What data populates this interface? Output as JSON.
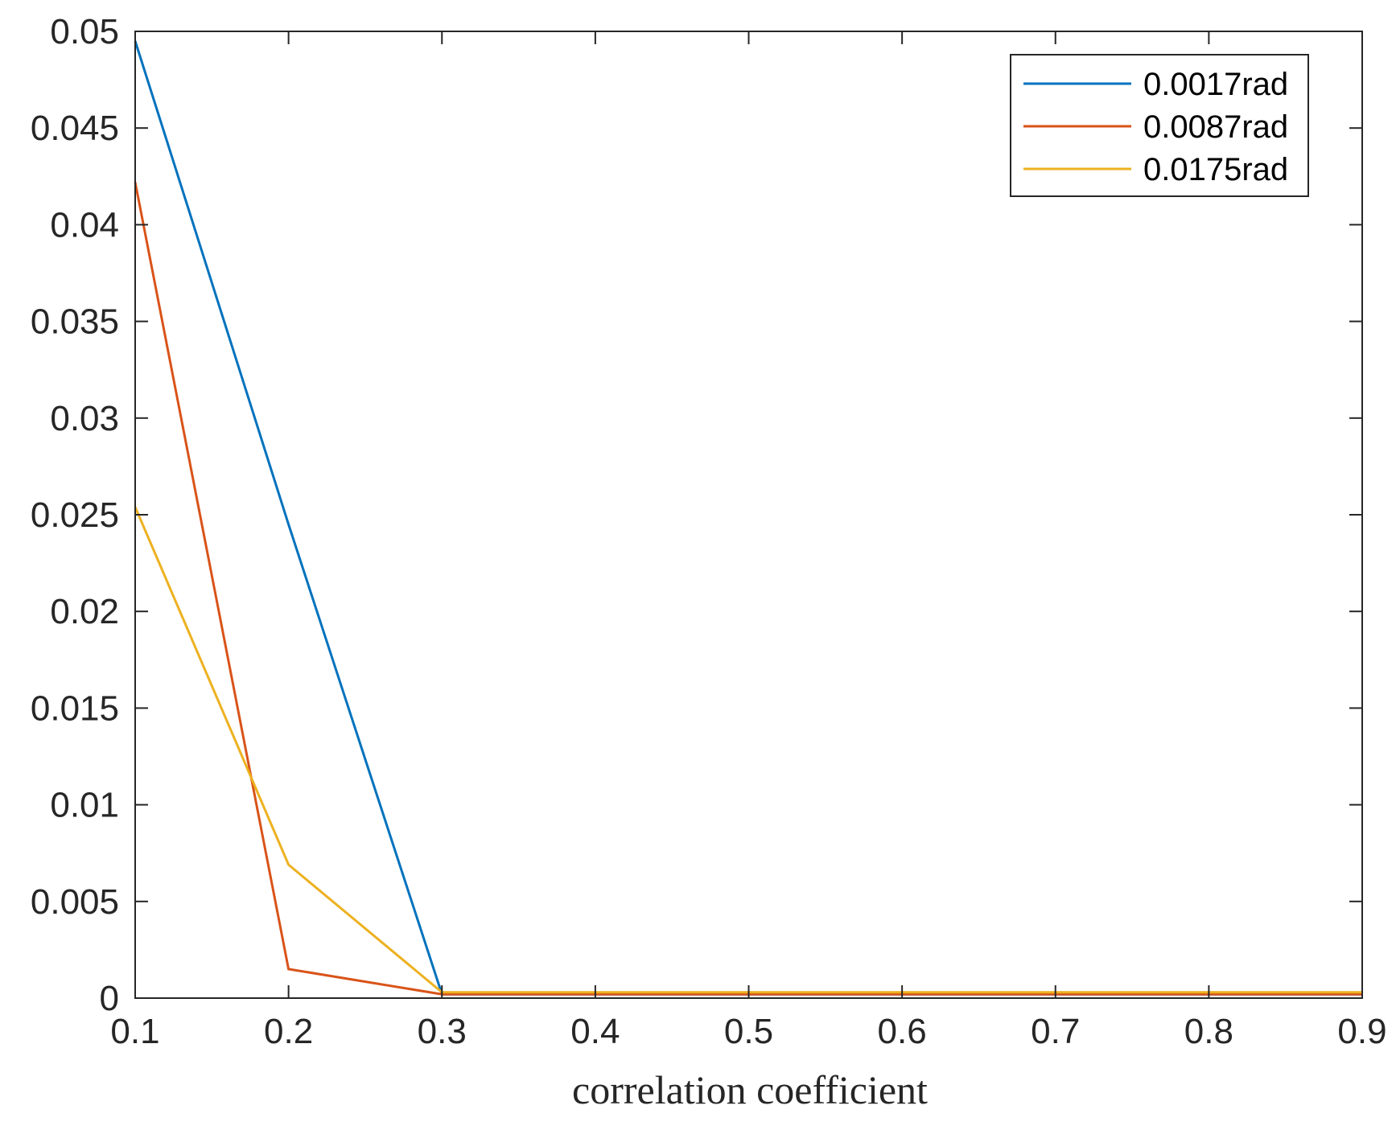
{
  "chart_data": {
    "type": "line",
    "title": "",
    "xlabel": "correlation coefficient",
    "ylabel": "",
    "xlim": [
      0.1,
      0.9
    ],
    "ylim": [
      0,
      0.05
    ],
    "grid": false,
    "legend_position": "top-right",
    "x": [
      0.1,
      0.2,
      0.3,
      0.4,
      0.5,
      0.6,
      0.7,
      0.8,
      0.9
    ],
    "x_tick_labels": [
      "0.1",
      "0.2",
      "0.3",
      "0.4",
      "0.5",
      "0.6",
      "0.7",
      "0.8",
      "0.9"
    ],
    "y_ticks": [
      0,
      0.005,
      0.01,
      0.015,
      0.02,
      0.025,
      0.03,
      0.035,
      0.04,
      0.045,
      0.05
    ],
    "y_tick_labels": [
      "0",
      "0.005",
      "0.01",
      "0.015",
      "0.02",
      "0.025",
      "0.03",
      "0.035",
      "0.04",
      "0.045",
      "0.05"
    ],
    "series": [
      {
        "name": "0.0017rad",
        "color": "#0072BD",
        "values": [
          0.0495,
          0.0245,
          0.0002,
          0.0002,
          0.0002,
          0.0002,
          0.0002,
          0.0002,
          0.0002
        ]
      },
      {
        "name": "0.0087rad",
        "color": "#D95319",
        "values": [
          0.0422,
          0.0015,
          0.0002,
          0.0002,
          0.0002,
          0.0002,
          0.0002,
          0.0002,
          0.0002
        ]
      },
      {
        "name": "0.0175rad",
        "color": "#EDB120",
        "values": [
          0.0254,
          0.0069,
          0.0003,
          0.0003,
          0.0003,
          0.0003,
          0.0003,
          0.0003,
          0.0003
        ]
      }
    ]
  }
}
